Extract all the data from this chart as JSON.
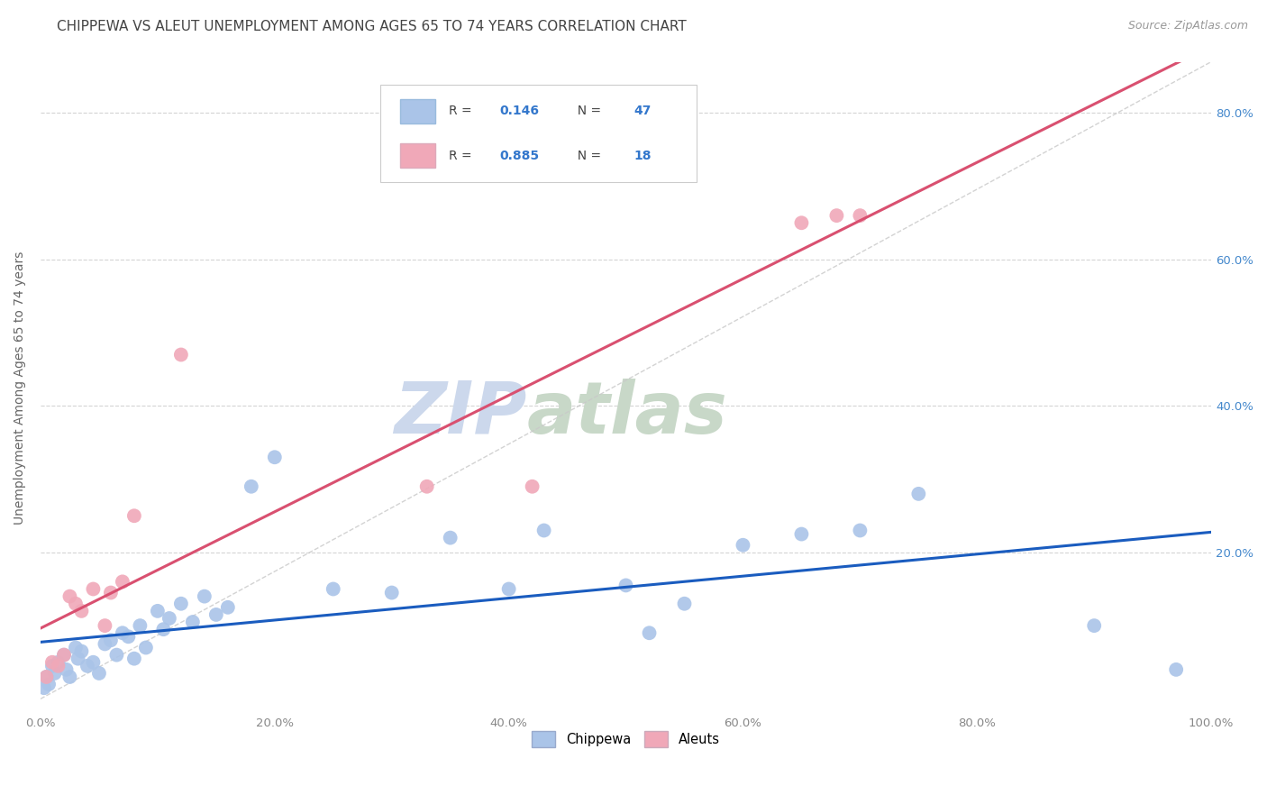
{
  "title": "CHIPPEWA VS ALEUT UNEMPLOYMENT AMONG AGES 65 TO 74 YEARS CORRELATION CHART",
  "source": "Source: ZipAtlas.com",
  "ylabel": "Unemployment Among Ages 65 to 74 years",
  "chippewa_R": 0.146,
  "chippewa_N": 47,
  "aleut_R": 0.885,
  "aleut_N": 18,
  "chippewa_color": "#aac4e8",
  "aleut_color": "#f0a8b8",
  "chippewa_line_color": "#1a5cbf",
  "aleut_line_color": "#d95070",
  "diag_line_color": "#c8c8c8",
  "background_color": "#ffffff",
  "grid_color": "#d0d0d0",
  "chippewa_x": [
    0.3,
    0.5,
    0.7,
    1.0,
    1.2,
    1.5,
    2.0,
    2.2,
    2.5,
    3.0,
    3.2,
    3.5,
    4.0,
    4.5,
    5.0,
    5.5,
    6.0,
    6.5,
    7.0,
    7.5,
    8.0,
    8.5,
    9.0,
    10.0,
    10.5,
    11.0,
    12.0,
    13.0,
    14.0,
    15.0,
    16.0,
    18.0,
    20.0,
    25.0,
    30.0,
    35.0,
    40.0,
    43.0,
    50.0,
    52.0,
    55.0,
    60.0,
    65.0,
    70.0,
    75.0,
    90.0,
    97.0
  ],
  "chippewa_y": [
    1.5,
    3.0,
    2.0,
    4.5,
    3.5,
    5.0,
    6.0,
    4.0,
    3.0,
    7.0,
    5.5,
    6.5,
    4.5,
    5.0,
    3.5,
    7.5,
    8.0,
    6.0,
    9.0,
    8.5,
    5.5,
    10.0,
    7.0,
    12.0,
    9.5,
    11.0,
    13.0,
    10.5,
    14.0,
    11.5,
    12.5,
    29.0,
    33.0,
    15.0,
    14.5,
    22.0,
    15.0,
    23.0,
    15.5,
    9.0,
    13.0,
    21.0,
    22.5,
    23.0,
    28.0,
    10.0,
    4.0
  ],
  "aleut_x": [
    0.5,
    1.0,
    1.5,
    2.0,
    2.5,
    3.0,
    3.5,
    4.5,
    5.5,
    6.0,
    7.0,
    8.0,
    12.0,
    33.0,
    42.0,
    65.0,
    68.0,
    70.0
  ],
  "aleut_y": [
    3.0,
    5.0,
    4.5,
    6.0,
    14.0,
    13.0,
    12.0,
    15.0,
    10.0,
    14.5,
    16.0,
    25.0,
    47.0,
    29.0,
    29.0,
    65.0,
    66.0,
    66.0
  ],
  "xlim": [
    0,
    100
  ],
  "ylim": [
    -2,
    87
  ],
  "xtick_labels": [
    "0.0%",
    "20.0%",
    "40.0%",
    "60.0%",
    "80.0%",
    "100.0%"
  ],
  "xtick_vals": [
    0,
    20,
    40,
    60,
    80,
    100
  ],
  "ytick_labels": [
    "20.0%",
    "40.0%",
    "60.0%",
    "80.0%"
  ],
  "ytick_vals": [
    20,
    40,
    60,
    80
  ],
  "watermark_zip": "ZIP",
  "watermark_atlas": "atlas",
  "watermark_color_zip": "#ccd8ec",
  "watermark_color_atlas": "#c8d8c8",
  "title_fontsize": 11,
  "axis_label_fontsize": 10,
  "tick_fontsize": 9.5,
  "source_fontsize": 9
}
